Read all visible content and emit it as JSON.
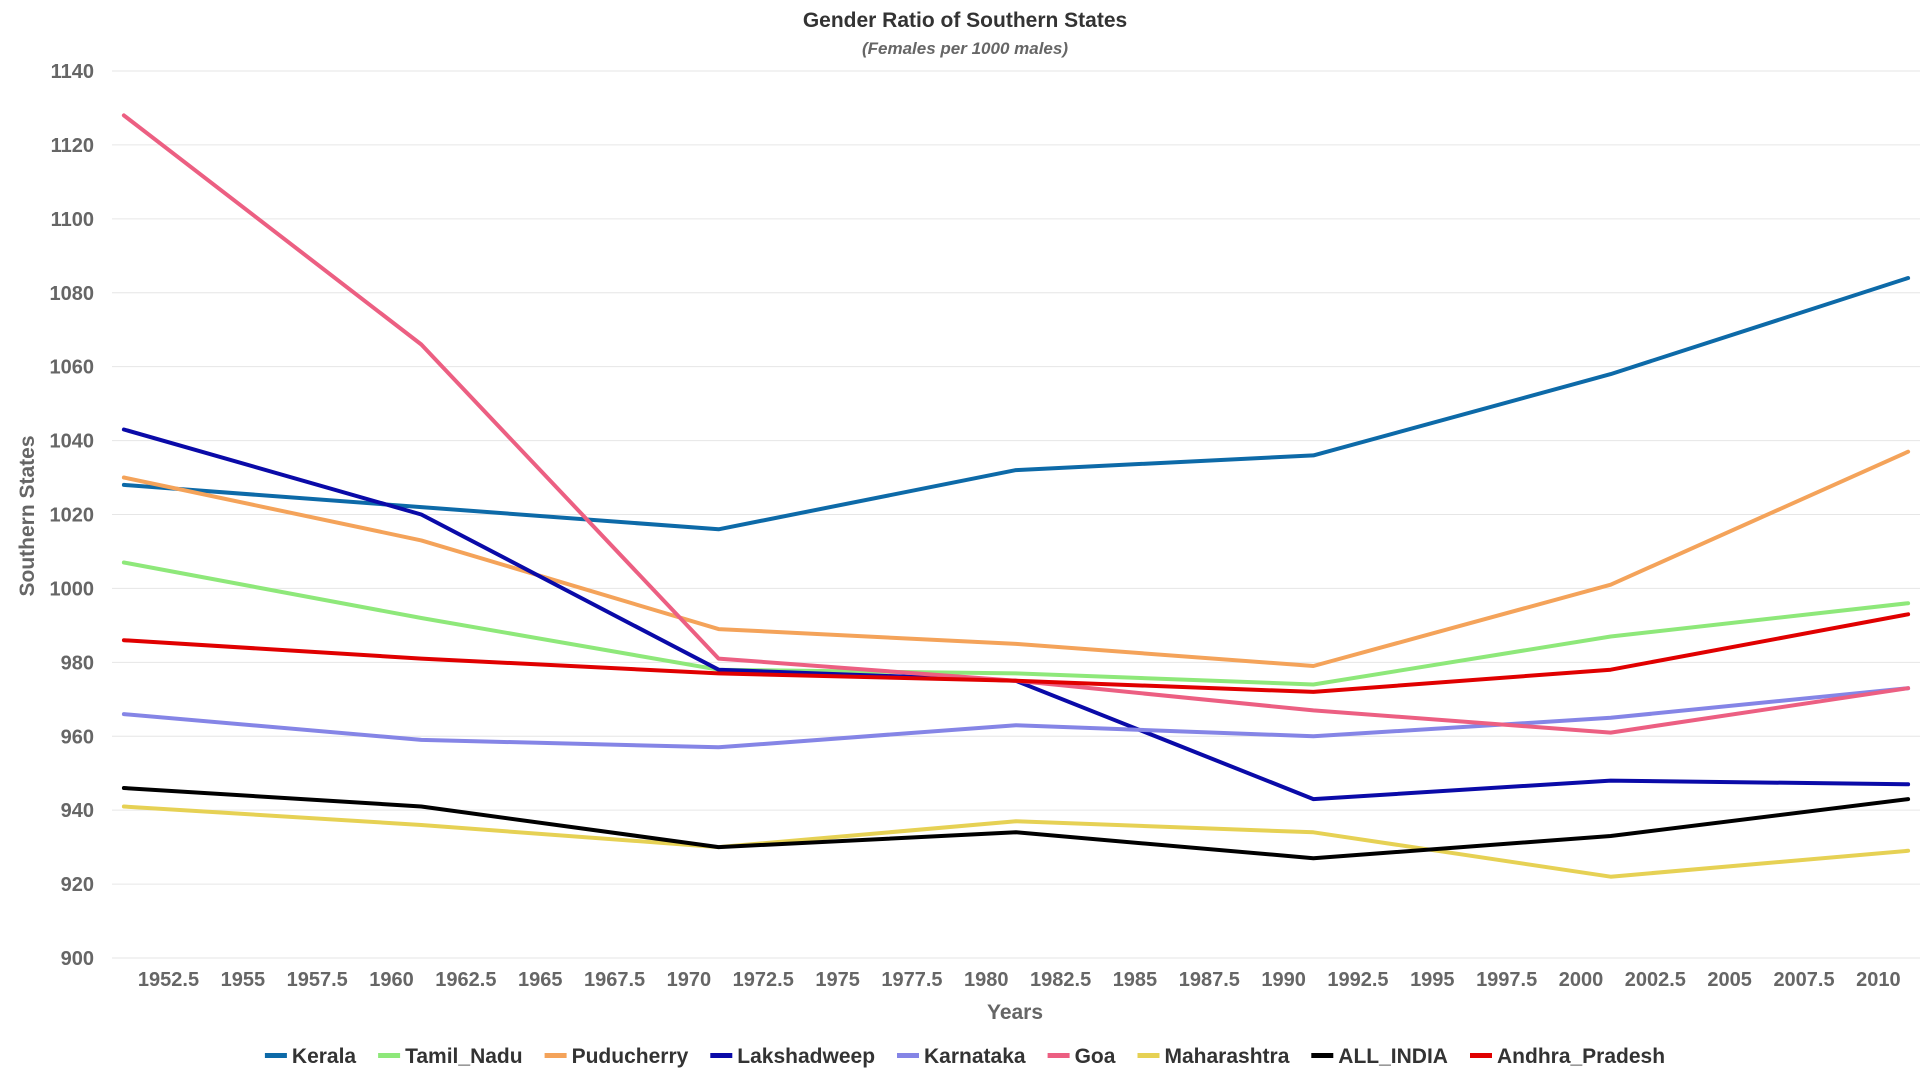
{
  "chart_data": {
    "type": "line",
    "title": "Gender Ratio of Southern States",
    "subtitle": "(Females per 1000 males)",
    "xlabel": "Years",
    "ylabel": "Southern States",
    "x": [
      1951,
      1961,
      1971,
      1981,
      1991,
      2001,
      2011
    ],
    "xlim": [
      1950.6,
      2011.4
    ],
    "ylim": [
      900,
      1140
    ],
    "x_ticks": [
      "1952.5",
      "1955",
      "1957.5",
      "1960",
      "1962.5",
      "1965",
      "1967.5",
      "1970",
      "1972.5",
      "1975",
      "1977.5",
      "1980",
      "1982.5",
      "1985",
      "1987.5",
      "1990",
      "1992.5",
      "1995",
      "1997.5",
      "2000",
      "2002.5",
      "2005",
      "2007.5",
      "2010"
    ],
    "y_ticks": [
      "900",
      "920",
      "940",
      "960",
      "980",
      "1000",
      "1020",
      "1040",
      "1060",
      "1080",
      "1100",
      "1120",
      "1140"
    ],
    "grid": true,
    "legend_position": "bottom",
    "series": [
      {
        "name": "Kerala",
        "color": "#0d6aa8",
        "values": [
          1028,
          1022,
          1016,
          1032,
          1036,
          1058,
          1084
        ]
      },
      {
        "name": "Tamil_Nadu",
        "color": "#8ee87a",
        "values": [
          1007,
          992,
          978,
          977,
          974,
          987,
          996
        ]
      },
      {
        "name": "Puducherry",
        "color": "#f4a35a",
        "values": [
          1030,
          1013,
          989,
          985,
          979,
          1001,
          1037
        ]
      },
      {
        "name": "Lakshadweep",
        "color": "#0a0aa8",
        "values": [
          1043,
          1020,
          978,
          975,
          943,
          948,
          947
        ]
      },
      {
        "name": "Karnataka",
        "color": "#8585e6",
        "values": [
          966,
          959,
          957,
          963,
          960,
          965,
          973
        ]
      },
      {
        "name": "Goa",
        "color": "#ec5f82",
        "values": [
          1128,
          1066,
          981,
          975,
          967,
          961,
          973
        ]
      },
      {
        "name": "Maharashtra",
        "color": "#e6d154",
        "values": [
          941,
          936,
          930,
          937,
          934,
          922,
          929
        ]
      },
      {
        "name": "ALL_INDIA",
        "color": "#000000",
        "values": [
          946,
          941,
          930,
          934,
          927,
          933,
          943
        ]
      },
      {
        "name": "Andhra_Pradesh",
        "color": "#e00000",
        "values": [
          986,
          981,
          977,
          975,
          972,
          978,
          993
        ]
      }
    ]
  }
}
